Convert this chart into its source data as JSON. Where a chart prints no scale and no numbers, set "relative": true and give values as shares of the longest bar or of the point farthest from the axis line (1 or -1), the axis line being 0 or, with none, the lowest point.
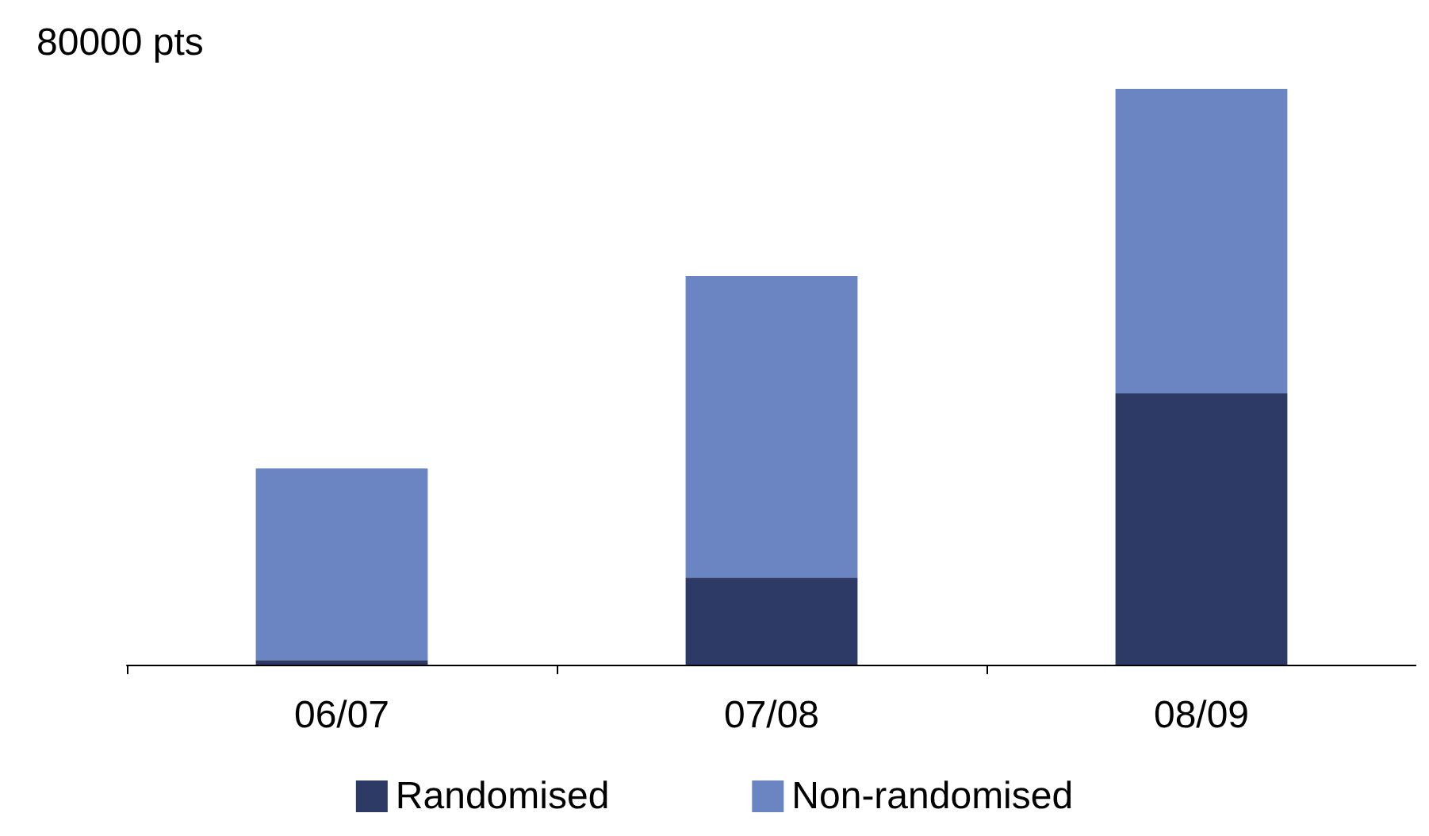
{
  "chart_data": {
    "type": "bar",
    "ylabel": "80000 pts",
    "relative": true,
    "stacked": true,
    "categories": [
      "06/07",
      "07/08",
      "08/09"
    ],
    "series": [
      {
        "name": "Randomised",
        "color": "#2e3a66",
        "values": [
          0.008,
          0.151,
          0.471
        ]
      },
      {
        "name": "Non-randomised",
        "color": "#6b84c2",
        "values": [
          0.333,
          0.524,
          0.529
        ]
      }
    ],
    "legend": "bottom"
  }
}
